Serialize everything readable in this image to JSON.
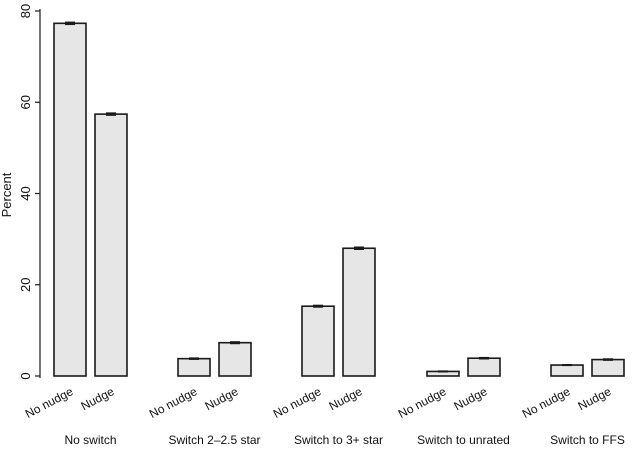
{
  "chart_data": {
    "type": "bar",
    "ylabel": "Percent",
    "ylim": [
      0,
      80
    ],
    "yticks": [
      0,
      20,
      40,
      60,
      80
    ],
    "grid": false,
    "bar_color": "#e6e6e6",
    "bar_edge_color": "#1a1a1a",
    "groups": [
      {
        "label": "No switch",
        "bars": [
          {
            "label": "No nudge",
            "value": 77.3,
            "error": 0.25
          },
          {
            "label": "Nudge",
            "value": 57.4,
            "error": 0.25
          }
        ]
      },
      {
        "label": "Switch 2–2.5 star",
        "bars": [
          {
            "label": "No nudge",
            "value": 3.8,
            "error": 0.15
          },
          {
            "label": "Nudge",
            "value": 7.3,
            "error": 0.2
          }
        ]
      },
      {
        "label": "Switch to 3+ star",
        "bars": [
          {
            "label": "No nudge",
            "value": 15.3,
            "error": 0.2
          },
          {
            "label": "Nudge",
            "value": 28.0,
            "error": 0.25
          }
        ]
      },
      {
        "label": "Switch to unrated",
        "bars": [
          {
            "label": "No nudge",
            "value": 1.0,
            "error": 0.1
          },
          {
            "label": "Nudge",
            "value": 3.9,
            "error": 0.15
          }
        ]
      },
      {
        "label": "Switch to FFS",
        "bars": [
          {
            "label": "No nudge",
            "value": 2.4,
            "error": 0.1
          },
          {
            "label": "Nudge",
            "value": 3.6,
            "error": 0.15
          }
        ]
      }
    ]
  }
}
